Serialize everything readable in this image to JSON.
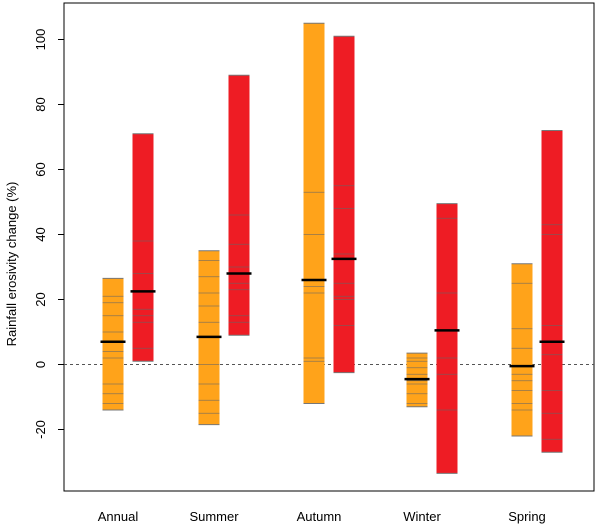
{
  "chart_data": {
    "type": "bar",
    "subtype": "floating-range-bars",
    "ylabel": "Rainfall erosivity change (%)",
    "ylim": [
      -40,
      110
    ],
    "yticks": [
      -20,
      0,
      20,
      40,
      60,
      80,
      100
    ],
    "zero_line": "dashed",
    "grid": false,
    "colors": {
      "orange": "#FFA31A",
      "red": "#EE1C24",
      "median": "#000000",
      "lines": "#666666"
    },
    "categories": [
      "Annual",
      "Summer",
      "Autumn",
      "Winter",
      "Spring"
    ],
    "series": [
      {
        "color": "orange",
        "values": [
          {
            "min": -14,
            "max": 26.5,
            "median": 7,
            "members": [
              21,
              19,
              15,
              10,
              4,
              2,
              -6,
              -9,
              -12
            ]
          },
          {
            "min": -18.5,
            "max": 35,
            "median": 8.5,
            "members": [
              32,
              27,
              22,
              18,
              13,
              0,
              -6,
              -11,
              -15
            ]
          },
          {
            "min": -12,
            "max": 105,
            "median": 26,
            "members": [
              53,
              40,
              24,
              22,
              2,
              1
            ]
          },
          {
            "min": -13,
            "max": 3.5,
            "median": -4.5,
            "members": [
              2,
              1,
              -1,
              -3,
              -5,
              -6,
              -9,
              -12
            ]
          },
          {
            "min": -22,
            "max": 31,
            "median": -0.5,
            "members": [
              25,
              11,
              5,
              -3,
              -5,
              -8,
              -12,
              -14
            ]
          }
        ]
      },
      {
        "color": "red",
        "values": [
          {
            "min": 1,
            "max": 71,
            "median": 22.5,
            "members": [
              38,
              28,
              17,
              15,
              13,
              5
            ]
          },
          {
            "min": 9,
            "max": 89,
            "median": 28,
            "members": [
              46,
              37,
              30,
              25,
              23,
              15,
              13
            ]
          },
          {
            "min": -2.5,
            "max": 101,
            "median": 32.5,
            "members": [
              55,
              48,
              34,
              25,
              21,
              20,
              12
            ]
          },
          {
            "min": -33.5,
            "max": 49.5,
            "median": 10.5,
            "members": [
              45,
              22,
              2,
              -3,
              -14
            ]
          },
          {
            "min": -27,
            "max": 72,
            "median": 7,
            "members": [
              43,
              40,
              12,
              3,
              -8,
              -15,
              -23
            ]
          }
        ]
      }
    ]
  }
}
